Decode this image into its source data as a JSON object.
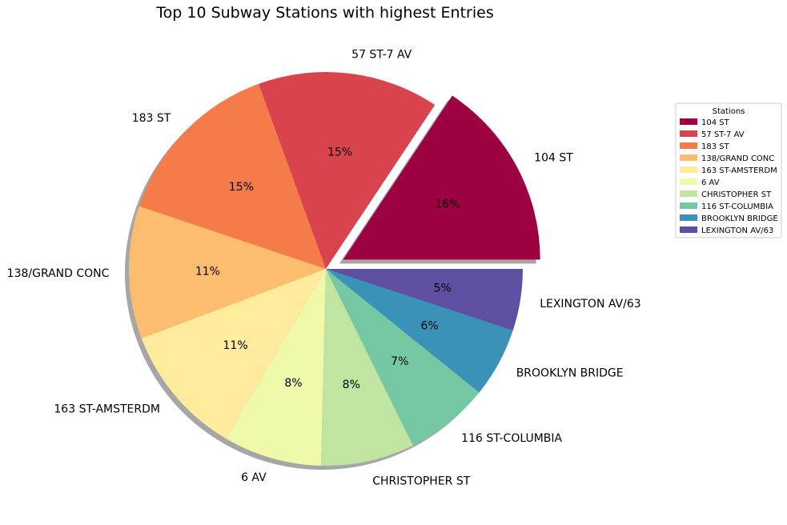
{
  "chart_data": {
    "type": "pie",
    "title": "Top 10 Subway Stations with highest Entries",
    "categories": [
      "104 ST",
      "57 ST-7 AV",
      "183 ST",
      "138/GRAND CONC",
      "163 ST-AMSTERDM",
      "6 AV",
      "CHRISTOPHER ST",
      "116 ST-COLUMBIA",
      "BROOKLYN BRIDGE",
      "LEXINGTON AV/63"
    ],
    "values": [
      16.1,
      15.3,
      14.7,
      11.2,
      11.1,
      8.3,
      7.9,
      7.1,
      5.9,
      5.2
    ],
    "percent_labels": [
      "16%",
      "15%",
      "15%",
      "11%",
      "11%",
      "8%",
      "8%",
      "7%",
      "6%",
      "5%"
    ],
    "colors": [
      "#9e0142",
      "#d8434e",
      "#f57b4a",
      "#fdbd6f",
      "#feeb9d",
      "#f0f8aa",
      "#c0e5a0",
      "#75c8a4",
      "#3a92b8",
      "#5e4fa2"
    ],
    "explode": [
      0.1,
      0,
      0,
      0,
      0,
      0,
      0,
      0,
      0,
      0
    ],
    "start_angle_deg": 0,
    "direction": "counterclockwise",
    "shadow": true,
    "legend": {
      "title": "Stations",
      "placement": "right",
      "entries": [
        "104 ST",
        "57 ST-7 AV",
        "183 ST",
        "138/GRAND CONC",
        "163 ST-AMSTERDM",
        "6 AV",
        "CHRISTOPHER ST",
        "116 ST-COLUMBIA",
        "BROOKLYN BRIDGE",
        "LEXINGTON AV/63"
      ]
    }
  }
}
